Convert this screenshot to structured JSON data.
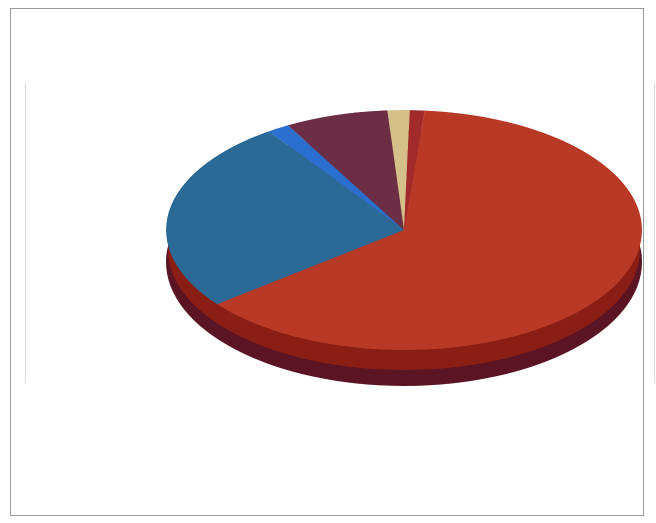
{
  "chart_data": {
    "type": "pie",
    "title": "",
    "colors": {
      "shadow": "#5a1424",
      "edge_dark": "#3e0c1a",
      "side": "#8a1e14",
      "label_text": "#dfe8f5"
    },
    "slices": [
      {
        "label": "",
        "value": 63.0,
        "color": "#b83a26"
      },
      {
        "label": "",
        "value": 26.0,
        "color": "#2b6a96"
      },
      {
        "label": "",
        "value": 1.5,
        "color": "#2a6fd0"
      },
      {
        "label": "",
        "value": 7.0,
        "color": "#6c2e44"
      },
      {
        "label": "",
        "value": 1.5,
        "color": "#d6c08a"
      },
      {
        "label": "",
        "value": 1.0,
        "color": "#a32a2a"
      }
    ],
    "legend": {
      "position": "left",
      "entries": [
        "",
        ""
      ]
    }
  }
}
